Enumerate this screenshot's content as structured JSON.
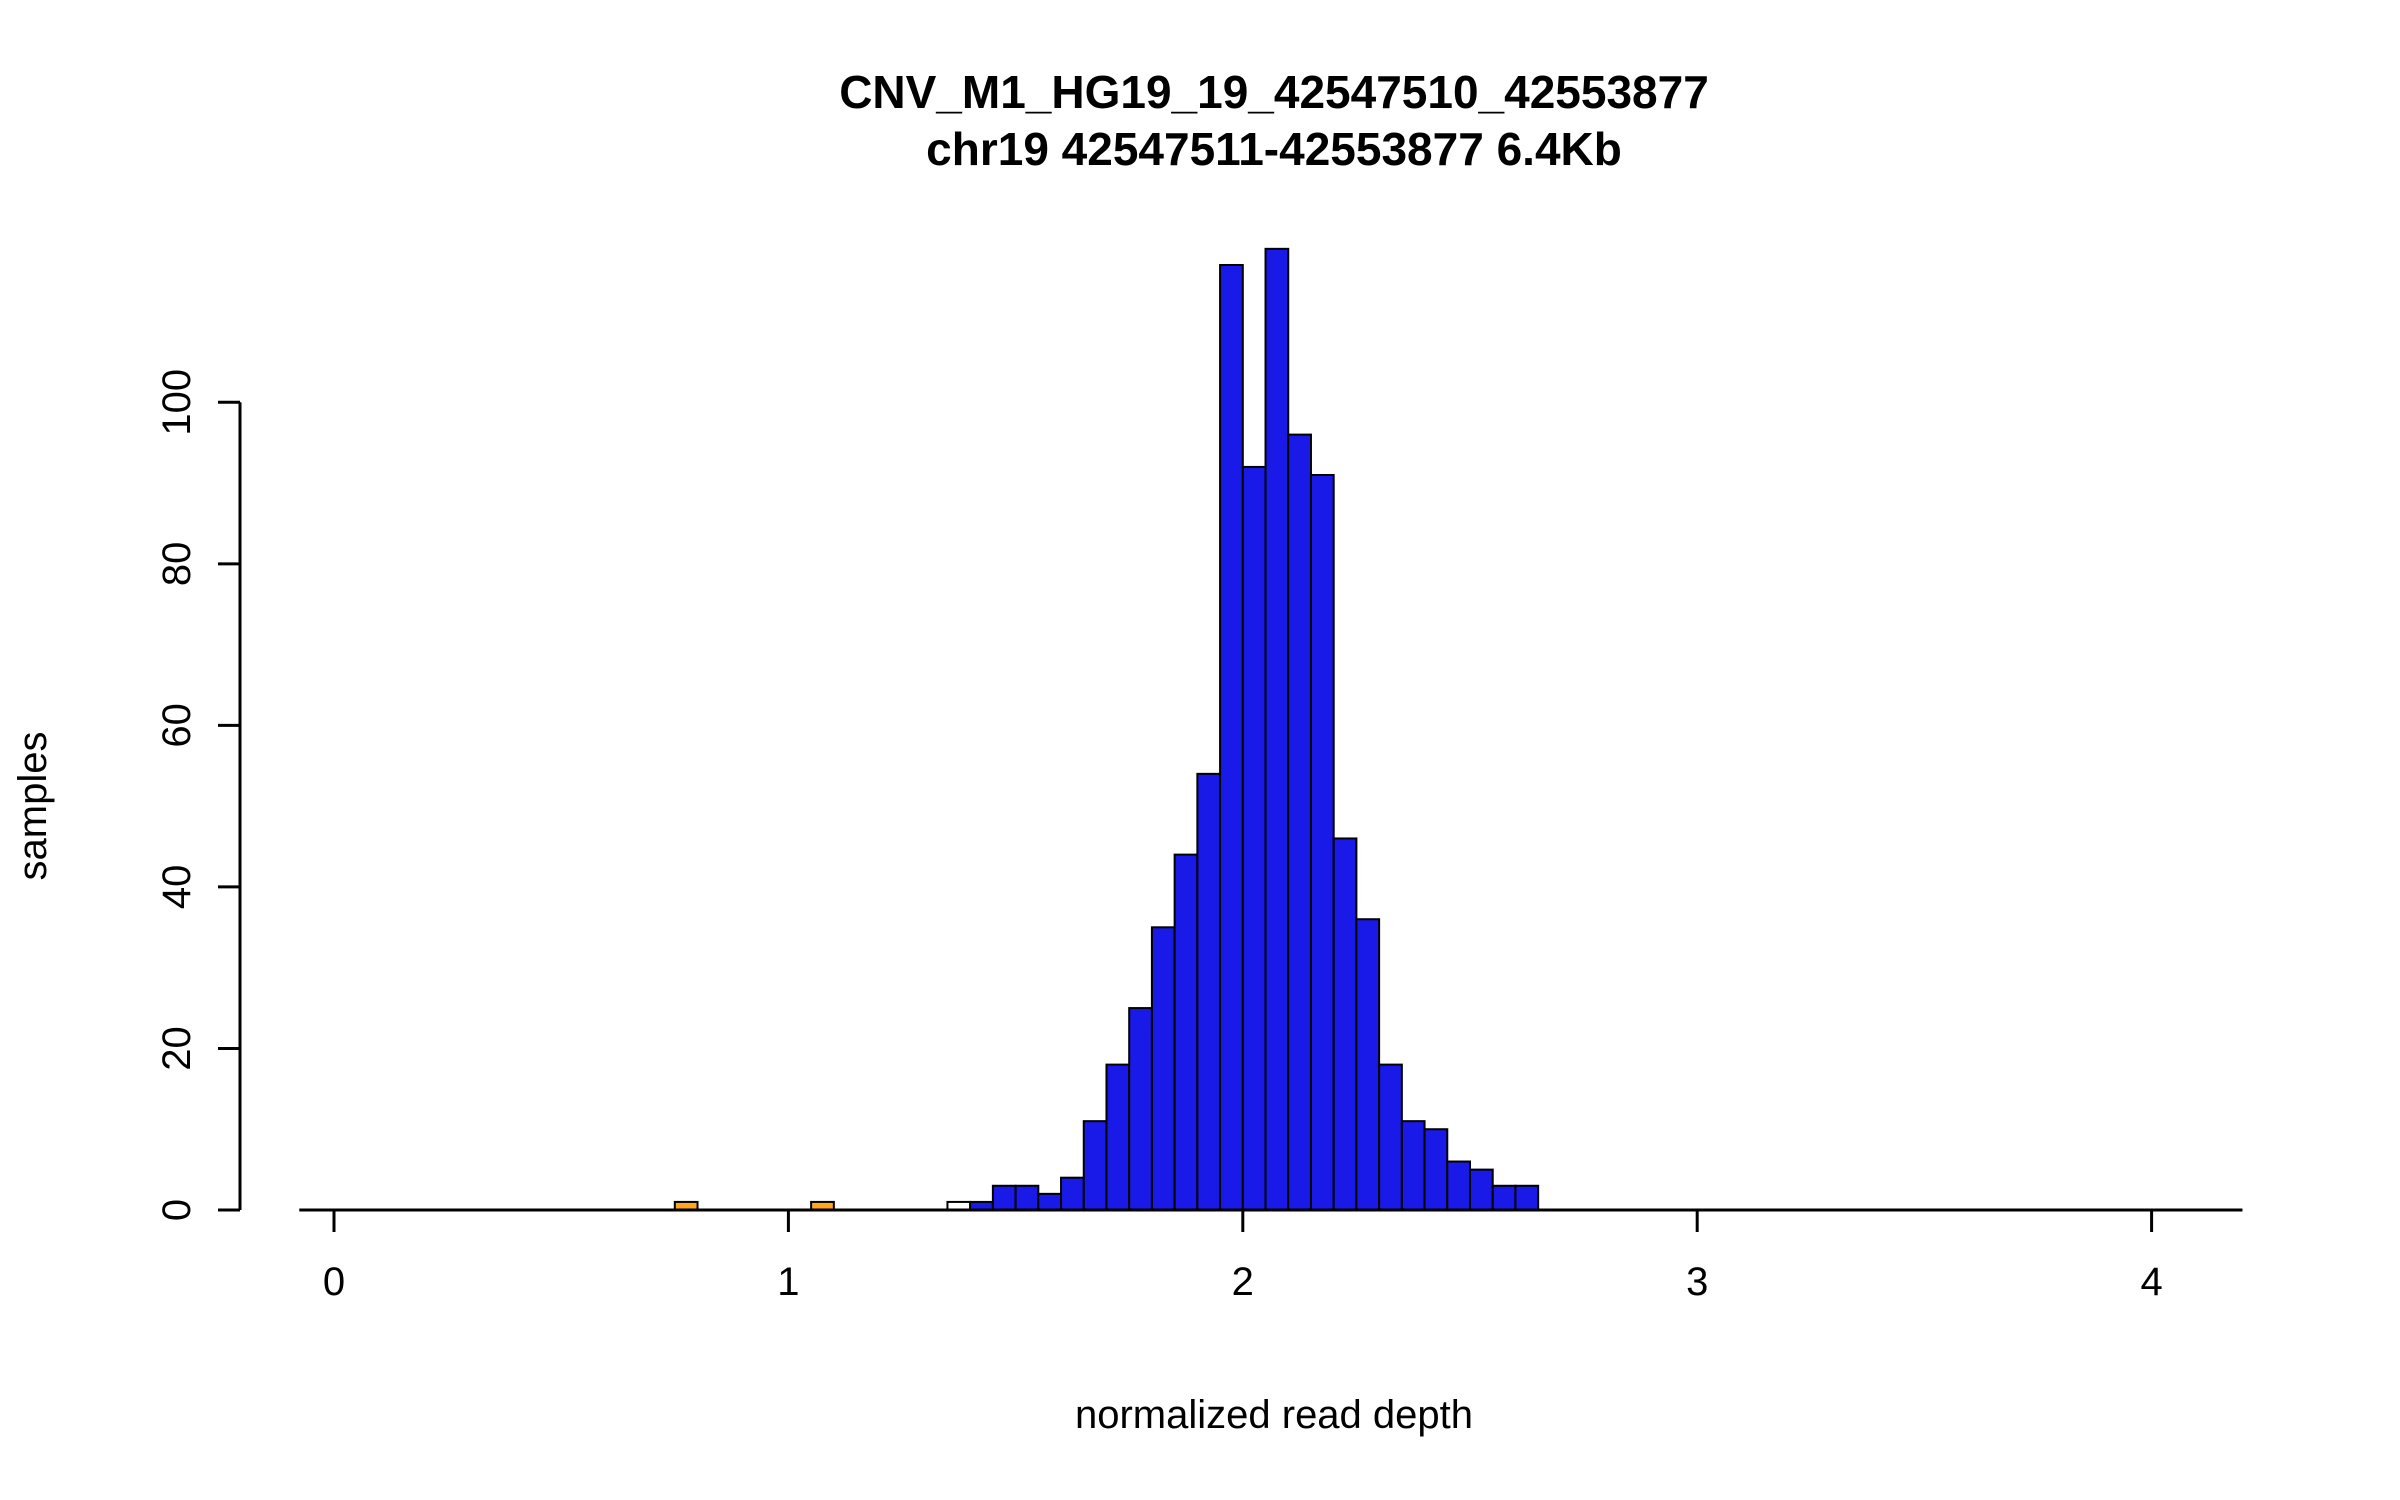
{
  "chart_data": {
    "type": "bar",
    "subtype": "histogram",
    "title": "CNV_M1_HG19_19_42547510_42553877",
    "subtitle": "chr19 42547511-42553877 6.4Kb",
    "xlabel": "normalized read depth",
    "ylabel": "samples",
    "xlim": [
      -0.05,
      4.2
    ],
    "ylim": [
      0,
      119
    ],
    "x_ticks": [
      0,
      1,
      2,
      3,
      4
    ],
    "y_ticks": [
      0,
      20,
      40,
      60,
      80,
      100
    ],
    "bin_width": 0.05,
    "grid": false,
    "legend": "none",
    "colors": {
      "blue": "#1A1AE8",
      "orange": "#FFA51E",
      "white": "#FFFFFF"
    },
    "bars": [
      {
        "x": 0.75,
        "count": 1,
        "color": "orange"
      },
      {
        "x": 1.05,
        "count": 1,
        "color": "orange"
      },
      {
        "x": 1.35,
        "count": 1,
        "color": "white"
      },
      {
        "x": 1.4,
        "count": 1,
        "color": "blue"
      },
      {
        "x": 1.45,
        "count": 3,
        "color": "blue"
      },
      {
        "x": 1.5,
        "count": 3,
        "color": "blue"
      },
      {
        "x": 1.55,
        "count": 2,
        "color": "blue"
      },
      {
        "x": 1.6,
        "count": 4,
        "color": "blue"
      },
      {
        "x": 1.65,
        "count": 11,
        "color": "blue"
      },
      {
        "x": 1.7,
        "count": 18,
        "color": "blue"
      },
      {
        "x": 1.75,
        "count": 25,
        "color": "blue"
      },
      {
        "x": 1.8,
        "count": 35,
        "color": "blue"
      },
      {
        "x": 1.85,
        "count": 44,
        "color": "blue"
      },
      {
        "x": 1.9,
        "count": 54,
        "color": "blue"
      },
      {
        "x": 1.95,
        "count": 117,
        "color": "blue"
      },
      {
        "x": 2.0,
        "count": 92,
        "color": "blue"
      },
      {
        "x": 2.05,
        "count": 119,
        "color": "blue"
      },
      {
        "x": 2.1,
        "count": 96,
        "color": "blue"
      },
      {
        "x": 2.15,
        "count": 91,
        "color": "blue"
      },
      {
        "x": 2.2,
        "count": 46,
        "color": "blue"
      },
      {
        "x": 2.25,
        "count": 36,
        "color": "blue"
      },
      {
        "x": 2.3,
        "count": 18,
        "color": "blue"
      },
      {
        "x": 2.35,
        "count": 11,
        "color": "blue"
      },
      {
        "x": 2.4,
        "count": 10,
        "color": "blue"
      },
      {
        "x": 2.45,
        "count": 6,
        "color": "blue"
      },
      {
        "x": 2.5,
        "count": 5,
        "color": "blue"
      },
      {
        "x": 2.55,
        "count": 3,
        "color": "blue"
      },
      {
        "x": 2.6,
        "count": 3,
        "color": "blue"
      }
    ]
  }
}
